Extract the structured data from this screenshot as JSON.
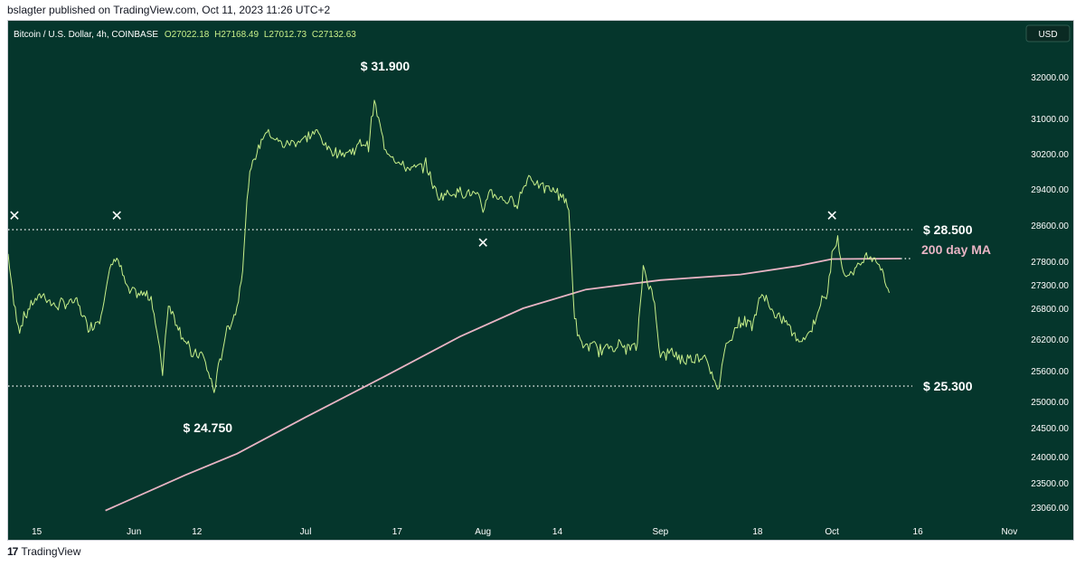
{
  "publisher_line": "bslagter published on TradingView.com, Oct 11, 2023 11:26 UTC+2",
  "footer": {
    "logo_glyph": "17",
    "brand": "TradingView"
  },
  "colors": {
    "background": "#05362c",
    "price_line": "#c8f08a",
    "moving_average": "#e8b4c4",
    "annotation_text": "#ffffff",
    "axis_text": "#ffffff"
  },
  "chart_data": {
    "type": "line",
    "symbol_header": {
      "symbol": "Bitcoin / U.S. Dollar, 4h, COINBASE",
      "open": "O27022.18",
      "high": "H27168.49",
      "low": "L27012.73",
      "close": "C27132.63"
    },
    "currency_badge": "USD",
    "y_axis": {
      "ticks": [
        32000,
        31000,
        30200,
        29400,
        28600,
        27800,
        27300,
        26800,
        26200,
        25600,
        25000,
        24500,
        24000,
        23500,
        23060
      ],
      "tick_labels": [
        "32000.00",
        "31000.00",
        "30200.00",
        "29400.00",
        "28600.00",
        "27800.00",
        "27300.00",
        "26800.00",
        "26200.00",
        "25600.00",
        "25000.00",
        "24500.00",
        "24000.00",
        "23500.00",
        "23060.00"
      ]
    },
    "x_axis": {
      "range": [
        "2023-05-10",
        "2023-11-03"
      ],
      "ticks": [
        {
          "date": "2023-05-15",
          "label": "15"
        },
        {
          "date": "2023-06-01",
          "label": "Jun"
        },
        {
          "date": "2023-06-12",
          "label": "12"
        },
        {
          "date": "2023-07-01",
          "label": "Jul"
        },
        {
          "date": "2023-07-17",
          "label": "17"
        },
        {
          "date": "2023-08-01",
          "label": "Aug"
        },
        {
          "date": "2023-08-14",
          "label": "14"
        },
        {
          "date": "2023-09-01",
          "label": "Sep"
        },
        {
          "date": "2023-09-18",
          "label": "18"
        },
        {
          "date": "2023-10-01",
          "label": "Oct"
        },
        {
          "date": "2023-10-16",
          "label": "16"
        },
        {
          "date": "2023-11-01",
          "label": "Nov"
        }
      ]
    },
    "series": [
      {
        "name": "",
        "points": [
          [
            "2023-05-10",
            27950
          ],
          [
            "2023-05-11",
            26900
          ],
          [
            "2023-05-12",
            26400
          ],
          [
            "2023-05-14",
            26900
          ],
          [
            "2023-05-16",
            27100
          ],
          [
            "2023-05-18",
            26850
          ],
          [
            "2023-05-20",
            26900
          ],
          [
            "2023-05-22",
            26950
          ],
          [
            "2023-05-24",
            26400
          ],
          [
            "2023-05-26",
            26600
          ],
          [
            "2023-05-28",
            27700
          ],
          [
            "2023-05-29",
            27900
          ],
          [
            "2023-05-31",
            27150
          ],
          [
            "2023-06-02",
            27100
          ],
          [
            "2023-06-04",
            27050
          ],
          [
            "2023-06-06",
            25600
          ],
          [
            "2023-06-07",
            26900
          ],
          [
            "2023-06-09",
            26400
          ],
          [
            "2023-06-11",
            25900
          ],
          [
            "2023-06-13",
            25900
          ],
          [
            "2023-06-15",
            25200
          ],
          [
            "2023-06-17",
            26300
          ],
          [
            "2023-06-19",
            26800
          ],
          [
            "2023-06-20",
            27700
          ],
          [
            "2023-06-21",
            29500
          ],
          [
            "2023-06-22",
            30100
          ],
          [
            "2023-06-24",
            30700
          ],
          [
            "2023-06-27",
            30400
          ],
          [
            "2023-06-30",
            30500
          ],
          [
            "2023-07-03",
            30700
          ],
          [
            "2023-07-05",
            30300
          ],
          [
            "2023-07-07",
            30200
          ],
          [
            "2023-07-09",
            30250
          ],
          [
            "2023-07-11",
            30450
          ],
          [
            "2023-07-12",
            30400
          ],
          [
            "2023-07-13",
            31400
          ],
          [
            "2023-07-14",
            30800
          ],
          [
            "2023-07-15",
            30300
          ],
          [
            "2023-07-18",
            29900
          ],
          [
            "2023-07-20",
            29850
          ],
          [
            "2023-07-22",
            29950
          ],
          [
            "2023-07-24",
            29250
          ],
          [
            "2023-07-26",
            29300
          ],
          [
            "2023-07-28",
            29350
          ],
          [
            "2023-07-31",
            29250
          ],
          [
            "2023-08-01",
            28900
          ],
          [
            "2023-08-02",
            29350
          ],
          [
            "2023-08-05",
            29150
          ],
          [
            "2023-08-07",
            29100
          ],
          [
            "2023-08-09",
            29700
          ],
          [
            "2023-08-11",
            29450
          ],
          [
            "2023-08-13",
            29400
          ],
          [
            "2023-08-15",
            29250
          ],
          [
            "2023-08-16",
            28900
          ],
          [
            "2023-08-17",
            26600
          ],
          [
            "2023-08-18",
            26100
          ],
          [
            "2023-08-20",
            26050
          ],
          [
            "2023-08-22",
            26000
          ],
          [
            "2023-08-24",
            26100
          ],
          [
            "2023-08-26",
            26050
          ],
          [
            "2023-08-28",
            26050
          ],
          [
            "2023-08-29",
            27700
          ],
          [
            "2023-08-30",
            27300
          ],
          [
            "2023-08-31",
            26900
          ],
          [
            "2023-09-01",
            25900
          ],
          [
            "2023-09-03",
            25950
          ],
          [
            "2023-09-05",
            25800
          ],
          [
            "2023-09-07",
            25850
          ],
          [
            "2023-09-09",
            25900
          ],
          [
            "2023-09-11",
            25150
          ],
          [
            "2023-09-12",
            25900
          ],
          [
            "2023-09-13",
            26200
          ],
          [
            "2023-09-15",
            26550
          ],
          [
            "2023-09-17",
            26500
          ],
          [
            "2023-09-19",
            27150
          ],
          [
            "2023-09-21",
            26600
          ],
          [
            "2023-09-23",
            26550
          ],
          [
            "2023-09-25",
            26150
          ],
          [
            "2023-09-27",
            26300
          ],
          [
            "2023-09-29",
            26900
          ],
          [
            "2023-09-30",
            27000
          ],
          [
            "2023-10-01",
            27900
          ],
          [
            "2023-10-02",
            28400
          ],
          [
            "2023-10-03",
            27500
          ],
          [
            "2023-10-05",
            27600
          ],
          [
            "2023-10-07",
            27900
          ],
          [
            "2023-10-08",
            27950
          ],
          [
            "2023-10-09",
            27800
          ],
          [
            "2023-10-10",
            27500
          ],
          [
            "2023-10-11",
            27130
          ]
        ]
      },
      {
        "name": "200 day MA",
        "points": [
          [
            "2023-05-27",
            23000
          ],
          [
            "2023-06-10",
            23650
          ],
          [
            "2023-06-19",
            24050
          ],
          [
            "2023-07-01",
            24700
          ],
          [
            "2023-07-15",
            25500
          ],
          [
            "2023-07-28",
            26250
          ],
          [
            "2023-08-08",
            26800
          ],
          [
            "2023-08-19",
            27200
          ],
          [
            "2023-09-01",
            27400
          ],
          [
            "2023-09-15",
            27520
          ],
          [
            "2023-09-25",
            27700
          ],
          [
            "2023-10-01",
            27850
          ],
          [
            "2023-10-13",
            27860
          ]
        ]
      }
    ],
    "horizontal_levels": [
      {
        "value": 28500,
        "label": "$ 28.500"
      },
      {
        "value": 25300,
        "label": "$ 25.300"
      }
    ],
    "annotations": [
      {
        "text": "$ 31.900",
        "date": "2023-07-13",
        "value": 31900
      },
      {
        "text": "$ 24.750",
        "date": "2023-06-15",
        "value": 24750
      },
      {
        "text": "200 day MA",
        "date": "2023-10-13",
        "value": 27860
      }
    ],
    "markers": [
      {
        "symbol": "✕",
        "date": "2023-05-10",
        "value": 28500
      },
      {
        "symbol": "✕",
        "date": "2023-05-29",
        "value": 28500
      },
      {
        "symbol": "✕",
        "date": "2023-08-01",
        "value": 28500
      },
      {
        "symbol": "✕",
        "date": "2023-10-01",
        "value": 28500
      }
    ]
  }
}
